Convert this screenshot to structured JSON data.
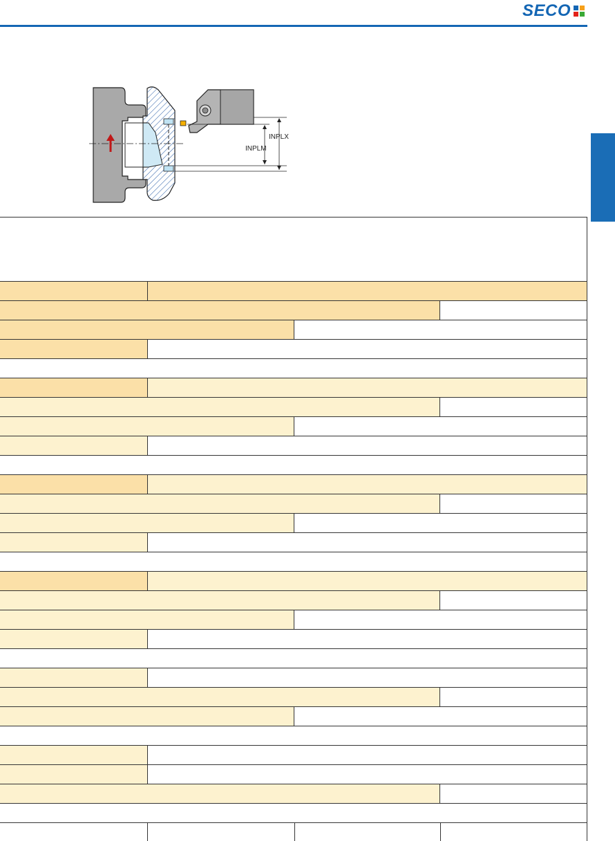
{
  "brand": {
    "logo_text": "SECO",
    "logo_colors": [
      "#1466b4",
      "#f6a01a",
      "#e2231a",
      "#3aa935"
    ]
  },
  "colors": {
    "accent_blue": "#1466b4",
    "row_header_dark": "#fbe0a8",
    "row_header_light": "#fdf2cf"
  },
  "drawing": {
    "dimension_label_outer": "INPLX",
    "dimension_label_inner": "INPLM"
  },
  "table": {
    "rows": [
      {
        "cells": [
          "dark",
          "dark"
        ]
      },
      {
        "cells": [
          "dark",
          "white"
        ]
      },
      {
        "cells": [
          "dark",
          "white"
        ]
      },
      {
        "cells": [
          "dark",
          "white"
        ]
      },
      {
        "cells": [
          "white"
        ]
      },
      {
        "cells": [
          "dark",
          "light"
        ]
      },
      {
        "cells": [
          "light",
          "white"
        ]
      },
      {
        "cells": [
          "light",
          "white"
        ]
      },
      {
        "cells": [
          "light",
          "white"
        ]
      },
      {
        "cells": [
          "white"
        ]
      },
      {
        "cells": [
          "dark",
          "light"
        ]
      },
      {
        "cells": [
          "light",
          "white"
        ]
      },
      {
        "cells": [
          "light",
          "white"
        ]
      },
      {
        "cells": [
          "light",
          "white"
        ]
      },
      {
        "cells": [
          "white"
        ]
      },
      {
        "cells": [
          "dark",
          "light"
        ]
      },
      {
        "cells": [
          "light",
          "white"
        ]
      },
      {
        "cells": [
          "light",
          "white"
        ]
      },
      {
        "cells": [
          "light",
          "white"
        ]
      },
      {
        "cells": [
          "white"
        ]
      },
      {
        "cells": [
          "light",
          "white"
        ]
      },
      {
        "cells": [
          "light",
          "white"
        ]
      },
      {
        "cells": [
          "light",
          "white"
        ]
      },
      {
        "cells": [
          "white"
        ]
      },
      {
        "cells": [
          "light",
          "white"
        ]
      },
      {
        "cells": [
          "light",
          "white"
        ]
      },
      {
        "cells": [
          "light",
          "white"
        ]
      },
      {
        "cells": [
          "white"
        ]
      },
      {
        "cells": [
          "white",
          "white",
          "white",
          "white"
        ]
      }
    ]
  }
}
